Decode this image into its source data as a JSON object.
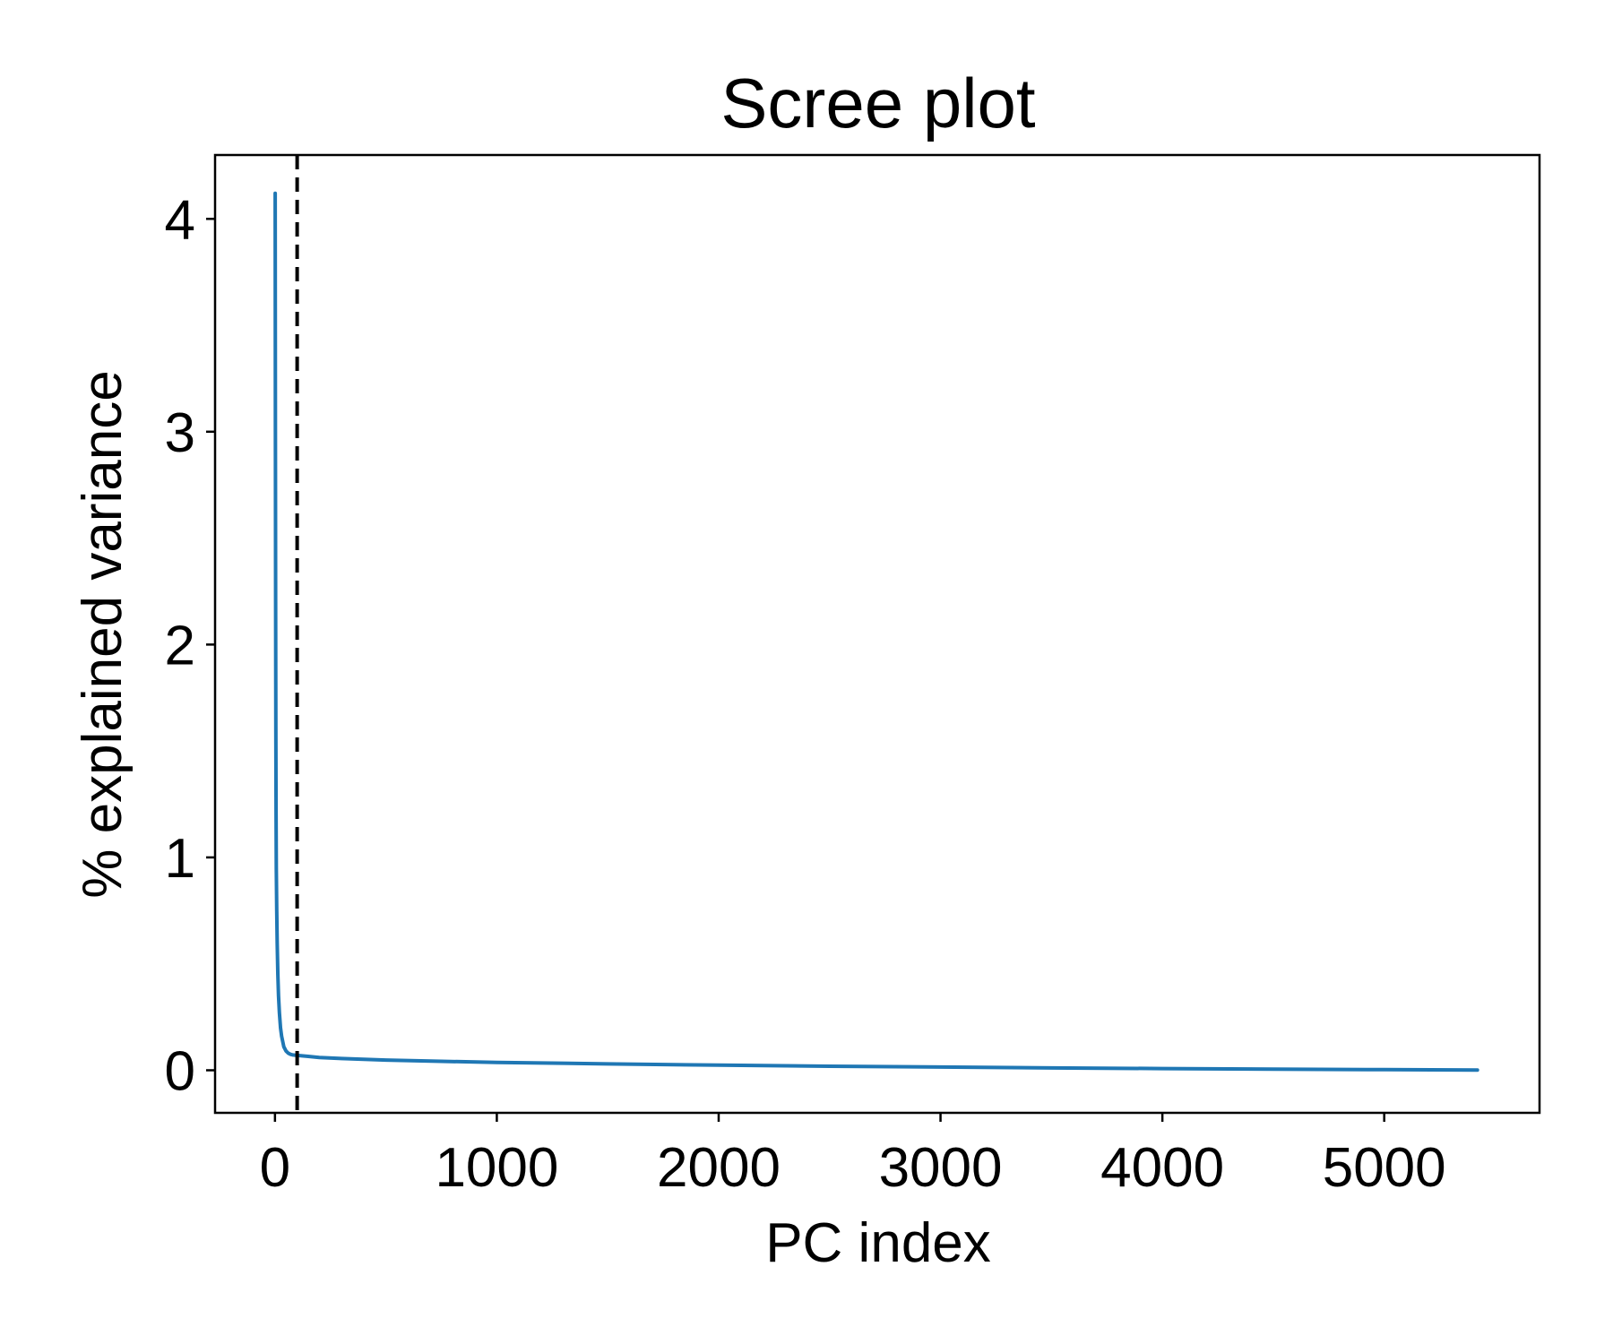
{
  "chart_data": {
    "type": "line",
    "title": "Scree plot",
    "xlabel": "PC index",
    "ylabel": "% explained variance",
    "xlim": [
      -270,
      5700
    ],
    "ylim": [
      -0.2,
      4.3
    ],
    "xticks": [
      0,
      1000,
      2000,
      3000,
      4000,
      5000
    ],
    "yticks": [
      0,
      1,
      2,
      3,
      4
    ],
    "grid": false,
    "line_color": "#1f77b4",
    "cutoff_color": "#000000",
    "cutoff_x": 100,
    "series": [
      {
        "x": [
          1,
          2,
          3,
          4,
          5,
          6,
          8,
          10,
          13,
          16,
          20,
          25,
          30,
          40,
          50,
          60,
          70,
          80,
          100,
          150,
          200,
          300,
          500,
          750,
          1000,
          1500,
          2000,
          2500,
          3000,
          3500,
          4000,
          4500,
          5000,
          5420
        ],
        "values": [
          4.12,
          3.0,
          2.2,
          1.6,
          1.2,
          0.95,
          0.75,
          0.6,
          0.45,
          0.35,
          0.27,
          0.2,
          0.16,
          0.11,
          0.09,
          0.08,
          0.075,
          0.072,
          0.07,
          0.065,
          0.06,
          0.055,
          0.048,
          0.042,
          0.037,
          0.03,
          0.024,
          0.019,
          0.015,
          0.011,
          0.008,
          0.005,
          0.003,
          0.001
        ]
      }
    ]
  }
}
